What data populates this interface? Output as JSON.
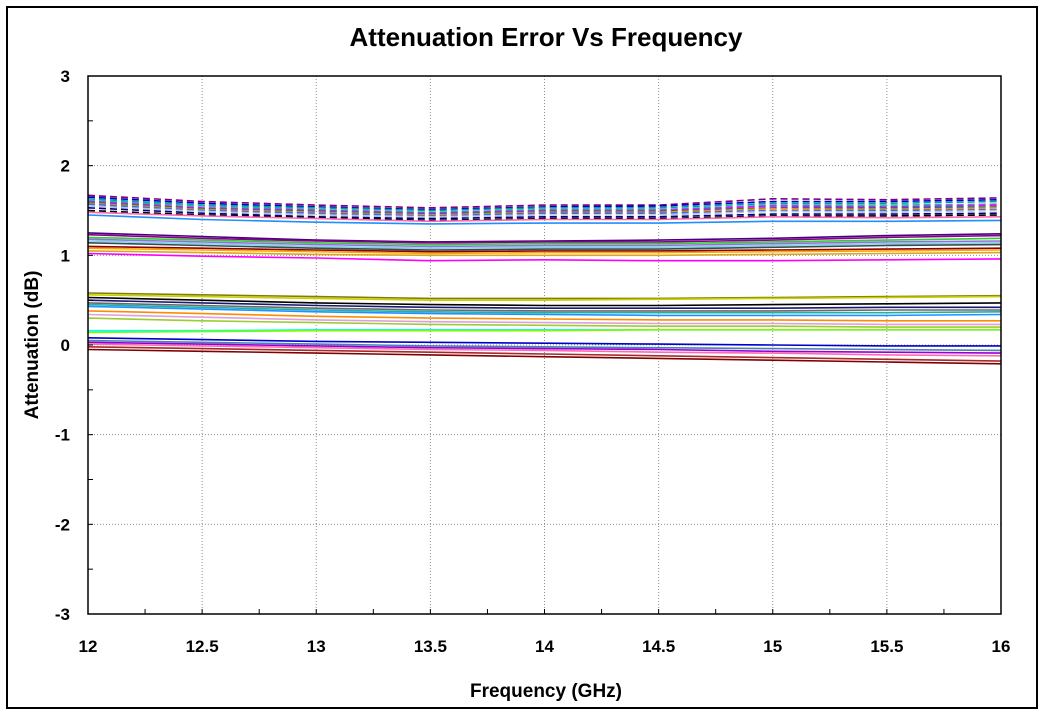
{
  "chart_data": {
    "type": "line",
    "title": "Attenuation Error Vs Frequency",
    "xlabel": "Frequency (GHz)",
    "ylabel": "Attenuation (dB)",
    "xlim": [
      12,
      16
    ],
    "ylim": [
      -3,
      3
    ],
    "x_ticks": [
      "12",
      "12.5",
      "13",
      "13.5",
      "14",
      "14.5",
      "15",
      "15.5",
      "16"
    ],
    "y_ticks": [
      "3",
      "2",
      "1",
      "0",
      "-1",
      "-2",
      "-3"
    ],
    "grid": true,
    "legend": "none",
    "x": [
      12,
      12.5,
      13,
      13.5,
      14,
      14.5,
      15,
      15.5,
      16
    ],
    "series": [
      {
        "color": "#800080",
        "dash": true,
        "values": [
          1.67,
          1.6,
          1.56,
          1.53,
          1.56,
          1.56,
          1.63,
          1.62,
          1.64
        ]
      },
      {
        "color": "#0000CD",
        "dash": true,
        "values": [
          1.65,
          1.58,
          1.54,
          1.51,
          1.54,
          1.55,
          1.6,
          1.6,
          1.62
        ]
      },
      {
        "color": "#00A0A0",
        "dash": true,
        "values": [
          1.63,
          1.56,
          1.53,
          1.5,
          1.53,
          1.53,
          1.58,
          1.58,
          1.6
        ]
      },
      {
        "color": "#20B2AA",
        "dash": true,
        "values": [
          1.61,
          1.55,
          1.51,
          1.48,
          1.51,
          1.51,
          1.56,
          1.56,
          1.57
        ]
      },
      {
        "color": "#FF00FF",
        "dash": true,
        "values": [
          1.6,
          1.53,
          1.5,
          1.47,
          1.5,
          1.5,
          1.55,
          1.54,
          1.56
        ]
      },
      {
        "color": "#008080",
        "dash": true,
        "values": [
          1.59,
          1.52,
          1.49,
          1.46,
          1.49,
          1.49,
          1.53,
          1.53,
          1.54
        ]
      },
      {
        "color": "#FF8C00",
        "dash": true,
        "values": [
          1.58,
          1.51,
          1.48,
          1.45,
          1.48,
          1.48,
          1.52,
          1.51,
          1.53
        ]
      },
      {
        "color": "#4169E1",
        "dash": true,
        "values": [
          1.57,
          1.5,
          1.47,
          1.44,
          1.47,
          1.47,
          1.5,
          1.5,
          1.51
        ]
      },
      {
        "color": "#B0C4DE",
        "dash": true,
        "values": [
          1.55,
          1.49,
          1.45,
          1.43,
          1.45,
          1.45,
          1.49,
          1.48,
          1.5
        ]
      },
      {
        "color": "#000080",
        "dash": true,
        "values": [
          1.53,
          1.47,
          1.43,
          1.41,
          1.43,
          1.43,
          1.46,
          1.46,
          1.47
        ]
      },
      {
        "color": "#000000",
        "dash": true,
        "values": [
          1.5,
          1.45,
          1.42,
          1.39,
          1.41,
          1.41,
          1.44,
          1.44,
          1.45
        ]
      },
      {
        "color": "#FF69B4",
        "dash": false,
        "values": [
          1.48,
          1.44,
          1.41,
          1.38,
          1.4,
          1.4,
          1.43,
          1.42,
          1.43
        ]
      },
      {
        "color": "#1E90FF",
        "dash": false,
        "values": [
          1.45,
          1.4,
          1.37,
          1.35,
          1.36,
          1.36,
          1.38,
          1.38,
          1.39
        ]
      },
      {
        "color": "#4B0082",
        "dash": false,
        "values": [
          1.25,
          1.21,
          1.17,
          1.15,
          1.16,
          1.17,
          1.19,
          1.22,
          1.24
        ]
      },
      {
        "color": "#8B008B",
        "dash": false,
        "values": [
          1.23,
          1.19,
          1.16,
          1.14,
          1.15,
          1.15,
          1.17,
          1.2,
          1.22
        ]
      },
      {
        "color": "#32CD32",
        "dash": false,
        "values": [
          1.2,
          1.17,
          1.14,
          1.12,
          1.13,
          1.13,
          1.15,
          1.17,
          1.19
        ]
      },
      {
        "color": "#9370DB",
        "dash": false,
        "values": [
          1.18,
          1.15,
          1.12,
          1.1,
          1.11,
          1.11,
          1.13,
          1.15,
          1.16
        ]
      },
      {
        "color": "#87CEEB",
        "dash": false,
        "values": [
          1.16,
          1.13,
          1.1,
          1.08,
          1.09,
          1.09,
          1.11,
          1.13,
          1.14
        ]
      },
      {
        "color": "#2F4F4F",
        "dash": false,
        "values": [
          1.14,
          1.11,
          1.08,
          1.06,
          1.07,
          1.07,
          1.09,
          1.11,
          1.12
        ]
      },
      {
        "color": "#8B0000",
        "dash": false,
        "values": [
          1.1,
          1.08,
          1.06,
          1.04,
          1.05,
          1.05,
          1.06,
          1.07,
          1.08
        ]
      },
      {
        "color": "#FFA500",
        "dash": false,
        "values": [
          1.08,
          1.06,
          1.04,
          1.02,
          1.03,
          1.03,
          1.04,
          1.05,
          1.06
        ]
      },
      {
        "color": "#DAA520",
        "dash": false,
        "values": [
          1.05,
          1.03,
          1.01,
          1.0,
          1.0,
          1.0,
          1.01,
          1.02,
          1.03
        ]
      },
      {
        "color": "#FF00FF",
        "dash": false,
        "values": [
          1.02,
          0.99,
          0.97,
          0.94,
          0.95,
          0.94,
          0.94,
          0.95,
          0.96
        ]
      },
      {
        "color": "#808000",
        "dash": false,
        "values": [
          0.58,
          0.56,
          0.54,
          0.52,
          0.52,
          0.52,
          0.53,
          0.54,
          0.55
        ]
      },
      {
        "color": "#CCCC00",
        "dash": false,
        "values": [
          0.56,
          0.54,
          0.52,
          0.5,
          0.5,
          0.51,
          0.52,
          0.53,
          0.54
        ]
      },
      {
        "color": "#000000",
        "dash": false,
        "values": [
          0.53,
          0.5,
          0.47,
          0.45,
          0.44,
          0.44,
          0.45,
          0.46,
          0.47
        ]
      },
      {
        "color": "#191970",
        "dash": false,
        "values": [
          0.5,
          0.47,
          0.44,
          0.42,
          0.41,
          0.41,
          0.41,
          0.42,
          0.42
        ]
      },
      {
        "color": "#696969",
        "dash": false,
        "values": [
          0.47,
          0.44,
          0.41,
          0.39,
          0.38,
          0.38,
          0.38,
          0.39,
          0.39
        ]
      },
      {
        "color": "#20B2AA",
        "dash": false,
        "values": [
          0.45,
          0.42,
          0.39,
          0.37,
          0.36,
          0.36,
          0.36,
          0.36,
          0.37
        ]
      },
      {
        "color": "#1E90FF",
        "dash": false,
        "values": [
          0.43,
          0.4,
          0.37,
          0.35,
          0.34,
          0.33,
          0.33,
          0.33,
          0.34
        ]
      },
      {
        "color": "#FF8C00",
        "dash": false,
        "values": [
          0.38,
          0.35,
          0.32,
          0.3,
          0.29,
          0.28,
          0.28,
          0.27,
          0.27
        ]
      },
      {
        "color": "#DDA0DD",
        "dash": false,
        "values": [
          0.34,
          0.31,
          0.28,
          0.26,
          0.25,
          0.24,
          0.24,
          0.23,
          0.23
        ]
      },
      {
        "color": "#9ACD32",
        "dash": false,
        "values": [
          0.3,
          0.27,
          0.25,
          0.23,
          0.22,
          0.21,
          0.21,
          0.2,
          0.2
        ]
      },
      {
        "color": "#00FFFF",
        "dash": false,
        "values": [
          0.16,
          0.16,
          0.17,
          0.17,
          0.17,
          0.17,
          0.17,
          0.17,
          0.17
        ]
      },
      {
        "color": "#7CFC00",
        "dash": false,
        "values": [
          0.14,
          0.15,
          0.16,
          0.16,
          0.16,
          0.17,
          0.17,
          0.17,
          0.17
        ]
      },
      {
        "color": "#0000CD",
        "dash": false,
        "values": [
          0.08,
          0.06,
          0.04,
          0.03,
          0.02,
          0.01,
          0.0,
          -0.01,
          -0.01
        ]
      },
      {
        "color": "#4682B4",
        "dash": false,
        "values": [
          0.05,
          0.03,
          0.01,
          -0.01,
          -0.02,
          -0.03,
          -0.04,
          -0.05,
          -0.06
        ]
      },
      {
        "color": "#9400D3",
        "dash": false,
        "values": [
          0.03,
          0.01,
          -0.01,
          -0.03,
          -0.04,
          -0.05,
          -0.07,
          -0.08,
          -0.09
        ]
      },
      {
        "color": "#FF69B4",
        "dash": false,
        "values": [
          0.01,
          -0.01,
          -0.03,
          -0.05,
          -0.06,
          -0.08,
          -0.09,
          -0.11,
          -0.12
        ]
      },
      {
        "color": "#A52A2A",
        "dash": false,
        "values": [
          -0.02,
          -0.04,
          -0.06,
          -0.08,
          -0.1,
          -0.12,
          -0.14,
          -0.16,
          -0.18
        ]
      },
      {
        "color": "#800000",
        "dash": false,
        "values": [
          -0.05,
          -0.07,
          -0.09,
          -0.11,
          -0.13,
          -0.15,
          -0.17,
          -0.19,
          -0.21
        ]
      }
    ]
  }
}
